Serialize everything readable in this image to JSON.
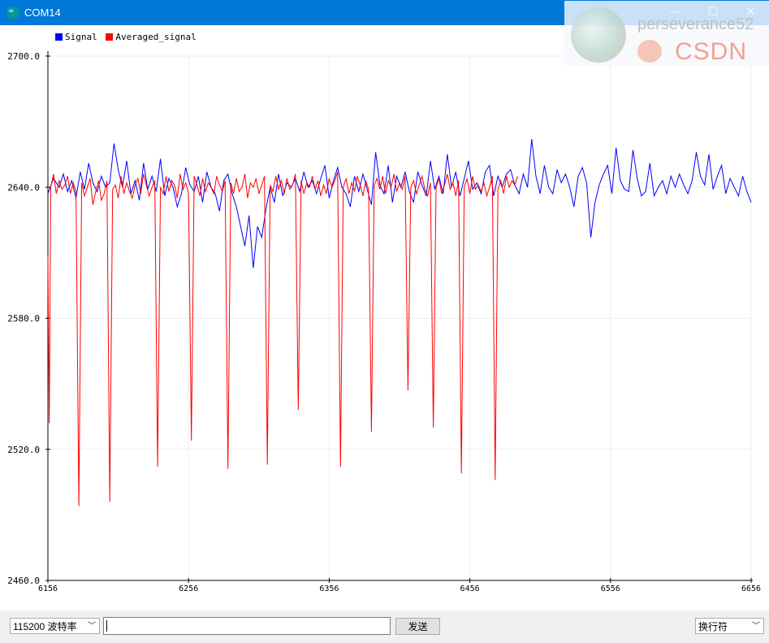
{
  "window": {
    "title": "COM14",
    "minimize": "—",
    "maximize": "☐",
    "close": "✕"
  },
  "watermark": {
    "name": "perseverance52",
    "logo_text": "CSDN"
  },
  "chart_data": {
    "type": "line",
    "title": "",
    "xlabel": "",
    "ylabel": "",
    "x_ticks": [
      "6156",
      "6256",
      "6356",
      "6456",
      "6556",
      "6656"
    ],
    "y_ticks": [
      "2700.0",
      "2640.0",
      "2580.0",
      "2520.0",
      "2460.0"
    ],
    "xlim": [
      6156,
      6656
    ],
    "ylim": [
      2460,
      2700
    ],
    "grid": true,
    "legend_position": "top-left",
    "series": [
      {
        "name": "Signal",
        "color": "#0000ff",
        "x": [
          6156,
          6160,
          6164,
          6167,
          6170,
          6173,
          6176,
          6179,
          6182,
          6185,
          6188,
          6191,
          6194,
          6197,
          6200,
          6203,
          6206,
          6209,
          6212,
          6215,
          6218,
          6221,
          6224,
          6227,
          6230,
          6233,
          6236,
          6239,
          6242,
          6245,
          6248,
          6251,
          6254,
          6257,
          6260,
          6263,
          6266,
          6269,
          6272,
          6275,
          6278,
          6281,
          6284,
          6287,
          6290,
          6293,
          6296,
          6299,
          6302,
          6305,
          6308,
          6311,
          6314,
          6317,
          6320,
          6323,
          6326,
          6329,
          6332,
          6335,
          6338,
          6341,
          6344,
          6347,
          6350,
          6353,
          6356,
          6359,
          6362,
          6365,
          6368,
          6371,
          6374,
          6377,
          6380,
          6383,
          6386,
          6389,
          6392,
          6395,
          6398,
          6401,
          6404,
          6407,
          6410,
          6413,
          6416,
          6419,
          6422,
          6425,
          6428,
          6431,
          6434,
          6437,
          6440,
          6443,
          6446,
          6449,
          6452,
          6455,
          6458,
          6461,
          6464,
          6467,
          6470,
          6473,
          6476,
          6479,
          6482,
          6485,
          6488,
          6491,
          6494,
          6497,
          6500,
          6503,
          6506,
          6509,
          6512,
          6515,
          6518,
          6521,
          6524,
          6527,
          6530,
          6533,
          6536,
          6539,
          6542,
          6545,
          6548,
          6551,
          6554,
          6557,
          6560,
          6563,
          6566,
          6569,
          6572,
          6575,
          6578,
          6581,
          6584,
          6587,
          6590,
          6593,
          6596,
          6599,
          6602,
          6605,
          6608,
          6611,
          6614,
          6617,
          6620,
          6623,
          6626,
          6629,
          6632,
          6635,
          6638,
          6641,
          6644,
          6647,
          6650,
          6653,
          6656
        ],
        "values": [
          2637,
          2644,
          2640,
          2646,
          2638,
          2643,
          2635,
          2647,
          2639,
          2651,
          2642,
          2638,
          2645,
          2640,
          2642,
          2660,
          2648,
          2640,
          2652,
          2637,
          2643,
          2634,
          2651,
          2639,
          2645,
          2638,
          2653,
          2636,
          2644,
          2640,
          2631,
          2637,
          2649,
          2641,
          2638,
          2645,
          2633,
          2647,
          2640,
          2637,
          2629,
          2643,
          2646,
          2637,
          2631,
          2622,
          2613,
          2627,
          2603,
          2622,
          2617,
          2630,
          2640,
          2633,
          2646,
          2636,
          2642,
          2640,
          2644,
          2638,
          2647,
          2640,
          2643,
          2637,
          2644,
          2650,
          2635,
          2643,
          2649,
          2640,
          2637,
          2631,
          2645,
          2638,
          2646,
          2639,
          2632,
          2656,
          2641,
          2637,
          2650,
          2633,
          2645,
          2640,
          2647,
          2638,
          2633,
          2647,
          2641,
          2636,
          2652,
          2639,
          2645,
          2637,
          2655,
          2640,
          2647,
          2636,
          2644,
          2652,
          2639,
          2642,
          2637,
          2647,
          2650,
          2636,
          2645,
          2640,
          2646,
          2648,
          2641,
          2637,
          2646,
          2640,
          2662,
          2645,
          2637,
          2650,
          2640,
          2637,
          2648,
          2642,
          2646,
          2640,
          2631,
          2645,
          2649,
          2642,
          2617,
          2633,
          2641,
          2646,
          2650,
          2637,
          2658,
          2643,
          2639,
          2638,
          2657,
          2644,
          2636,
          2638,
          2651,
          2636,
          2640,
          2643,
          2637,
          2645,
          2640,
          2646,
          2641,
          2637,
          2643,
          2656,
          2645,
          2641,
          2655,
          2639,
          2645,
          2650,
          2637,
          2644,
          2640,
          2636,
          2645,
          2638,
          2633
        ]
      },
      {
        "name": "Averaged_signal",
        "color": "#ff0000",
        "x": [
          6156,
          6157,
          6158,
          6160,
          6162,
          6164,
          6166,
          6168,
          6170,
          6172,
          6174,
          6176,
          6178,
          6180,
          6182,
          6184,
          6186,
          6188,
          6190,
          6192,
          6194,
          6196,
          6198,
          6200,
          6202,
          6204,
          6206,
          6208,
          6210,
          6212,
          6214,
          6216,
          6218,
          6220,
          6222,
          6224,
          6226,
          6228,
          6230,
          6232,
          6234,
          6236,
          6238,
          6240,
          6242,
          6244,
          6246,
          6248,
          6250,
          6252,
          6254,
          6256,
          6258,
          6260,
          6262,
          6264,
          6266,
          6268,
          6270,
          6272,
          6274,
          6276,
          6278,
          6280,
          6282,
          6284,
          6286,
          6288,
          6290,
          6292,
          6294,
          6296,
          6298,
          6300,
          6302,
          6304,
          6306,
          6308,
          6310,
          6312,
          6314,
          6316,
          6318,
          6320,
          6322,
          6324,
          6326,
          6328,
          6330,
          6332,
          6334,
          6336,
          6338,
          6340,
          6342,
          6344,
          6346,
          6348,
          6350,
          6352,
          6354,
          6356,
          6358,
          6360,
          6362,
          6364,
          6366,
          6368,
          6370,
          6372,
          6374,
          6376,
          6378,
          6380,
          6382,
          6384,
          6386,
          6388,
          6390,
          6392,
          6394,
          6396,
          6398,
          6400,
          6402,
          6404,
          6406,
          6408,
          6410,
          6412,
          6414,
          6416,
          6418,
          6420,
          6422,
          6424,
          6426,
          6428,
          6430,
          6432,
          6434,
          6436,
          6438,
          6440,
          6442,
          6444,
          6446,
          6448,
          6450,
          6452,
          6454,
          6456,
          6458,
          6460,
          6462,
          6464,
          6466,
          6468,
          6470,
          6472,
          6474,
          6476,
          6478,
          6480,
          6482,
          6484,
          6486,
          6488,
          6490
        ],
        "values": [
          2608,
          2532,
          2640,
          2646,
          2637,
          2643,
          2639,
          2641,
          2645,
          2637,
          2642,
          2638,
          2494,
          2642,
          2636,
          2640,
          2644,
          2632,
          2638,
          2643,
          2634,
          2637,
          2643,
          2496,
          2639,
          2641,
          2635,
          2645,
          2637,
          2642,
          2638,
          2635,
          2641,
          2644,
          2637,
          2646,
          2641,
          2636,
          2640,
          2643,
          2512,
          2640,
          2637,
          2645,
          2638,
          2643,
          2641,
          2635,
          2646,
          2639,
          2642,
          2637,
          2524,
          2645,
          2641,
          2636,
          2644,
          2638,
          2642,
          2640,
          2637,
          2645,
          2641,
          2638,
          2643,
          2511,
          2642,
          2637,
          2644,
          2638,
          2640,
          2646,
          2635,
          2642,
          2640,
          2644,
          2637,
          2641,
          2645,
          2513,
          2641,
          2638,
          2645,
          2639,
          2643,
          2637,
          2644,
          2639,
          2641,
          2646,
          2538,
          2643,
          2637,
          2642,
          2640,
          2645,
          2639,
          2643,
          2636,
          2641,
          2637,
          2644,
          2640,
          2643,
          2647,
          2512,
          2640,
          2644,
          2637,
          2642,
          2638,
          2645,
          2641,
          2636,
          2643,
          2639,
          2528,
          2641,
          2644,
          2639,
          2645,
          2637,
          2643,
          2640,
          2646,
          2638,
          2642,
          2639,
          2645,
          2547,
          2640,
          2643,
          2637,
          2641,
          2645,
          2639,
          2636,
          2642,
          2530,
          2640,
          2644,
          2637,
          2641,
          2646,
          2639,
          2642,
          2636,
          2643,
          2509,
          2640,
          2644,
          2637,
          2645,
          2639,
          2641,
          2638,
          2642,
          2636,
          2640,
          2645,
          2506,
          2639,
          2643,
          2637,
          2645,
          2640,
          2643,
          2641,
          2645
        ]
      }
    ]
  },
  "bottom": {
    "baud_select": "115200 波特率",
    "send_label": "发送",
    "line_ending_select": "换行符",
    "message_input": ""
  }
}
